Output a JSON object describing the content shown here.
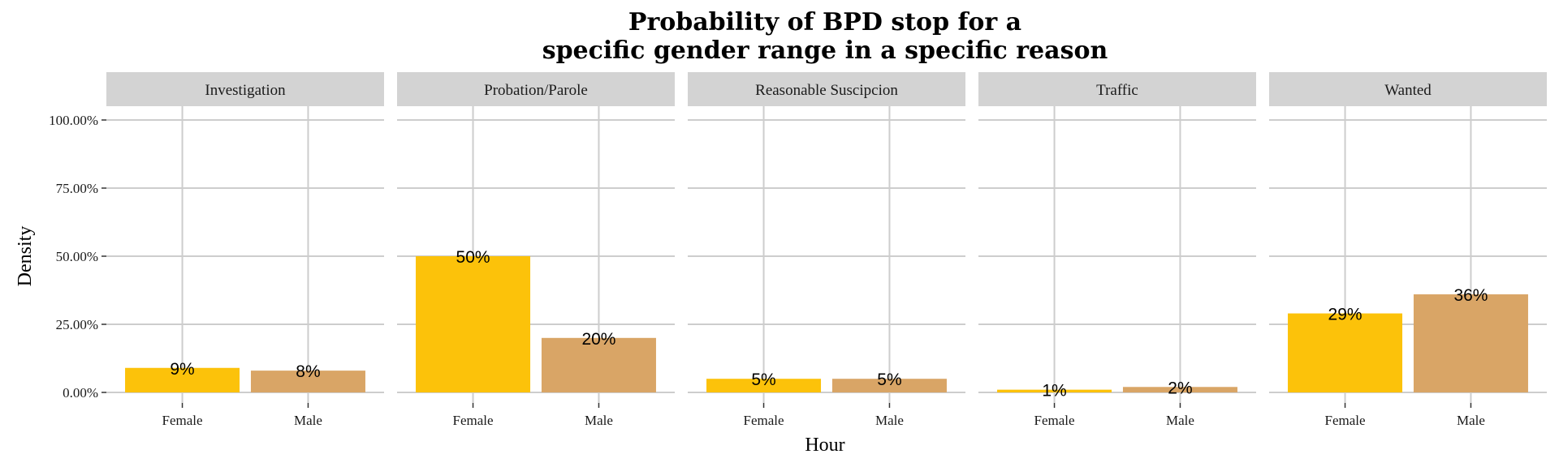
{
  "chart_data": {
    "type": "bar",
    "title": [
      "Probability of BPD stop for a",
      "specific gender range in a specific reason"
    ],
    "xlabel": "Hour",
    "ylabel": "Density",
    "ylim": [
      0,
      1
    ],
    "yticks": [
      0,
      0.25,
      0.5,
      0.75,
      1
    ],
    "ytick_labels": [
      "0.00%",
      "25.00%",
      "50.00%",
      "75.00%",
      "100.00%"
    ],
    "categories": [
      "Female",
      "Male"
    ],
    "colors": {
      "Female": "#FCC20A",
      "Male": "#D9A566"
    },
    "grid": true,
    "facets": [
      {
        "name": "Investigation",
        "values": [
          0.09,
          0.08
        ],
        "labels": [
          "9%",
          "8%"
        ]
      },
      {
        "name": "Probation/Parole",
        "values": [
          0.5,
          0.2
        ],
        "labels": [
          "50%",
          "20%"
        ]
      },
      {
        "name": "Reasonable Suscipcion",
        "values": [
          0.05,
          0.05
        ],
        "labels": [
          "5%",
          "5%"
        ]
      },
      {
        "name": "Traffic",
        "values": [
          0.01,
          0.02
        ],
        "labels": [
          "1%",
          "2%"
        ]
      },
      {
        "name": "Wanted",
        "values": [
          0.29,
          0.36
        ],
        "labels": [
          "29%",
          "36%"
        ]
      }
    ]
  }
}
